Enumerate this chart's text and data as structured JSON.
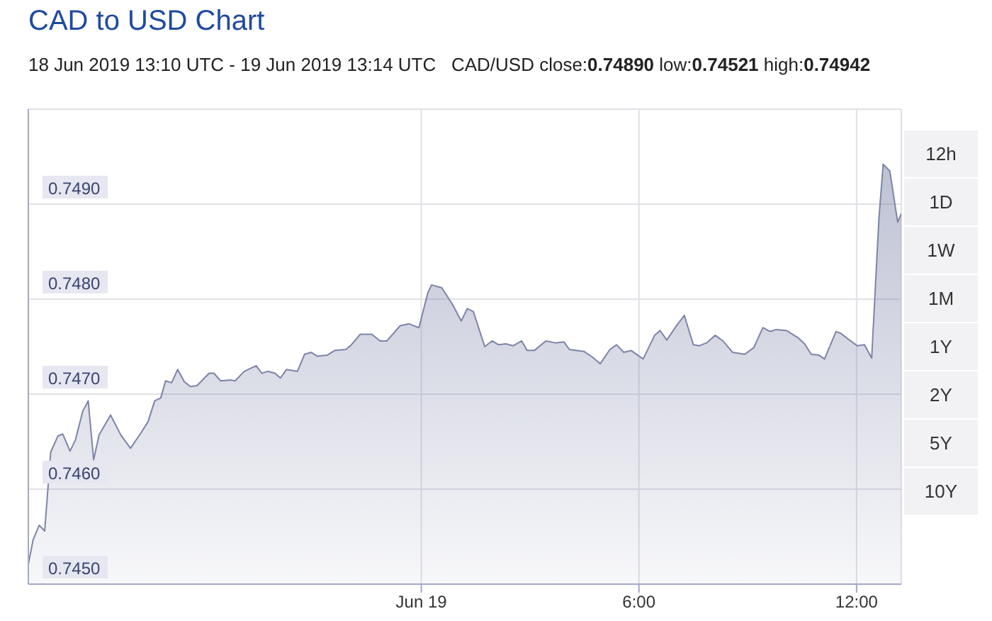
{
  "chart_data": {
    "type": "area",
    "title": "CAD to USD Chart",
    "subtitle": "18 Jun 2019 13:10 UTC - 19 Jun 2019 13:14 UTC   CAD/USD close:0.74890 low:0.74521 high:0.74942",
    "annotations": [
      "12h",
      "1D",
      "1W",
      "1M",
      "1Y",
      "2Y",
      "5Y",
      "10Y"
    ],
    "xlim": [
      "2019-06-18T13:10",
      "2019-06-19T13:14"
    ],
    "xticks": [
      {
        "value": "2019-06-19T00:00",
        "label": "Jun 19"
      },
      {
        "value": "2019-06-19T06:00",
        "label": "6:00"
      },
      {
        "value": "2019-06-19T12:00",
        "label": "12:00"
      }
    ],
    "ylim": [
      0.745,
      0.75
    ],
    "yticks": [
      {
        "value": 0.745,
        "label": "0.7450"
      },
      {
        "value": 0.746,
        "label": "0.7460"
      },
      {
        "value": 0.747,
        "label": "0.7470"
      },
      {
        "value": 0.748,
        "label": "0.7480"
      },
      {
        "value": 0.749,
        "label": "0.7490"
      }
    ],
    "grid": true,
    "marker": "none",
    "line_style": "solid",
    "series": [
      {
        "color": "#7d84a8",
        "x": [
          "2019-06-18T13:10",
          "2019-06-18T13:18",
          "2019-06-18T13:28",
          "2019-06-18T13:37",
          "2019-06-18T13:47",
          "2019-06-18T13:59",
          "2019-06-18T14:07",
          "2019-06-18T14:19",
          "2019-06-18T14:28",
          "2019-06-18T14:40",
          "2019-06-18T14:49",
          "2019-06-18T14:58",
          "2019-06-18T15:07",
          "2019-06-18T15:26",
          "2019-06-18T15:43",
          "2019-06-18T15:59",
          "2019-06-18T16:16",
          "2019-06-18T16:28",
          "2019-06-18T16:39",
          "2019-06-18T16:49",
          "2019-06-18T16:57",
          "2019-06-18T17:07",
          "2019-06-18T17:17",
          "2019-06-18T17:28",
          "2019-06-18T17:38",
          "2019-06-18T17:49",
          "2019-06-18T18:09",
          "2019-06-18T18:17",
          "2019-06-18T18:28",
          "2019-06-18T18:44",
          "2019-06-18T18:52",
          "2019-06-18T19:07",
          "2019-06-18T19:27",
          "2019-06-18T19:36",
          "2019-06-18T19:46",
          "2019-06-18T19:58",
          "2019-06-18T20:07",
          "2019-06-18T20:17",
          "2019-06-18T20:35",
          "2019-06-18T20:47",
          "2019-06-18T20:58",
          "2019-06-18T21:08",
          "2019-06-18T21:24",
          "2019-06-18T21:37",
          "2019-06-18T21:55",
          "2019-06-18T22:03",
          "2019-06-18T22:19",
          "2019-06-18T22:38",
          "2019-06-18T22:52",
          "2019-06-18T23:03",
          "2019-06-18T23:25",
          "2019-06-18T23:40",
          "2019-06-18T23:56",
          "2019-06-19T00:11",
          "2019-06-19T00:17",
          "2019-06-19T00:34",
          "2019-06-19T00:52",
          "2019-06-19T01:06",
          "2019-06-19T01:16",
          "2019-06-19T01:26",
          "2019-06-19T01:45",
          "2019-06-19T01:57",
          "2019-06-19T02:08",
          "2019-06-19T02:20",
          "2019-06-19T02:32",
          "2019-06-19T02:46",
          "2019-06-19T02:55",
          "2019-06-19T03:07",
          "2019-06-19T03:26",
          "2019-06-19T03:42",
          "2019-06-19T03:56",
          "2019-06-19T04:05",
          "2019-06-19T04:29",
          "2019-06-19T04:43",
          "2019-06-19T04:56",
          "2019-06-19T05:12",
          "2019-06-19T05:23",
          "2019-06-19T05:35",
          "2019-06-19T05:47",
          "2019-06-19T06:07",
          "2019-06-19T06:26",
          "2019-06-19T06:35",
          "2019-06-19T06:46",
          "2019-06-19T07:01",
          "2019-06-19T07:15",
          "2019-06-19T07:30",
          "2019-06-19T07:40",
          "2019-06-19T07:52",
          "2019-06-19T08:06",
          "2019-06-19T08:19",
          "2019-06-19T08:35",
          "2019-06-19T08:55",
          "2019-06-19T09:10",
          "2019-06-19T09:25",
          "2019-06-19T09:37",
          "2019-06-19T09:47",
          "2019-06-19T10:04",
          "2019-06-19T10:24",
          "2019-06-19T10:34",
          "2019-06-19T10:45",
          "2019-06-19T10:58",
          "2019-06-19T11:07",
          "2019-06-19T11:26",
          "2019-06-19T11:34",
          "2019-06-19T11:46",
          "2019-06-19T12:01",
          "2019-06-19T12:13",
          "2019-06-19T12:25",
          "2019-06-19T12:37",
          "2019-06-19T12:44",
          "2019-06-19T12:55",
          "2019-06-19T13:08",
          "2019-06-19T13:14"
        ],
        "values": [
          0.74521,
          0.74547,
          0.74562,
          0.74556,
          0.74639,
          0.74656,
          0.74658,
          0.7464,
          0.74652,
          0.74682,
          0.74693,
          0.74631,
          0.74657,
          0.74678,
          0.74657,
          0.74643,
          0.74659,
          0.74671,
          0.74693,
          0.74696,
          0.74714,
          0.74712,
          0.74726,
          0.74713,
          0.74708,
          0.74709,
          0.74722,
          0.74722,
          0.74714,
          0.74715,
          0.74714,
          0.74724,
          0.7473,
          0.74722,
          0.74724,
          0.74722,
          0.74717,
          0.74726,
          0.74724,
          0.74742,
          0.74744,
          0.7474,
          0.74741,
          0.74746,
          0.74747,
          0.74751,
          0.74763,
          0.74763,
          0.74756,
          0.74756,
          0.74772,
          0.74774,
          0.7477,
          0.74807,
          0.74815,
          0.74812,
          0.74794,
          0.74777,
          0.7479,
          0.74787,
          0.7475,
          0.74756,
          0.74752,
          0.74753,
          0.74751,
          0.74756,
          0.74746,
          0.74746,
          0.74756,
          0.74754,
          0.74755,
          0.74747,
          0.74745,
          0.74739,
          0.74732,
          0.74747,
          0.74752,
          0.74744,
          0.74746,
          0.74737,
          0.74762,
          0.74767,
          0.74757,
          0.74771,
          0.74783,
          0.74752,
          0.74751,
          0.74754,
          0.74762,
          0.74756,
          0.74744,
          0.74742,
          0.74749,
          0.7477,
          0.74766,
          0.74768,
          0.74767,
          0.74759,
          0.74753,
          0.74742,
          0.74741,
          0.74737,
          0.74766,
          0.74764,
          0.74758,
          0.74751,
          0.74752,
          0.74738,
          0.74885,
          0.74942,
          0.74935,
          0.74881,
          0.7489
        ]
      }
    ]
  }
}
